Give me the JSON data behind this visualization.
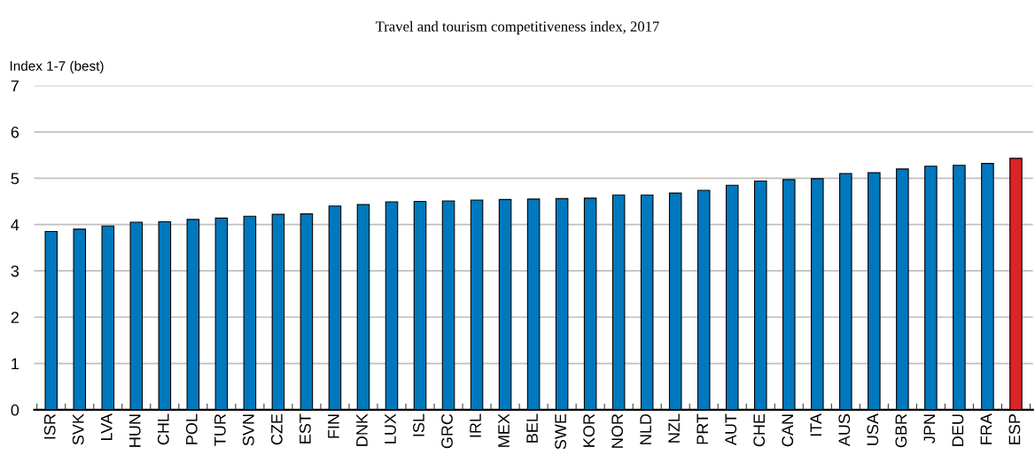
{
  "chart_data": {
    "type": "bar",
    "title": "Travel and tourism competitiveness index, 2017",
    "ylabel": "Index 1-7 (best)",
    "categories": [
      "ISR",
      "SVK",
      "LVA",
      "HUN",
      "CHL",
      "POL",
      "TUR",
      "SVN",
      "CZE",
      "EST",
      "FIN",
      "DNK",
      "LUX",
      "ISL",
      "GRC",
      "IRL",
      "MEX",
      "BEL",
      "SWE",
      "KOR",
      "NOR",
      "NLD",
      "NZL",
      "PRT",
      "AUT",
      "CHE",
      "CAN",
      "ITA",
      "AUS",
      "USA",
      "GBR",
      "JPN",
      "DEU",
      "FRA",
      "ESP"
    ],
    "values": [
      3.85,
      3.9,
      3.97,
      4.05,
      4.06,
      4.11,
      4.14,
      4.18,
      4.22,
      4.23,
      4.4,
      4.43,
      4.49,
      4.5,
      4.51,
      4.53,
      4.54,
      4.55,
      4.56,
      4.57,
      4.64,
      4.64,
      4.68,
      4.74,
      4.85,
      4.94,
      4.97,
      4.99,
      5.1,
      5.12,
      5.2,
      5.26,
      5.28,
      5.32,
      5.43
    ],
    "colors": [
      "#0078be",
      "#0078be",
      "#0078be",
      "#0078be",
      "#0078be",
      "#0078be",
      "#0078be",
      "#0078be",
      "#0078be",
      "#0078be",
      "#0078be",
      "#0078be",
      "#0078be",
      "#0078be",
      "#0078be",
      "#0078be",
      "#0078be",
      "#0078be",
      "#0078be",
      "#0078be",
      "#0078be",
      "#0078be",
      "#0078be",
      "#0078be",
      "#0078be",
      "#0078be",
      "#0078be",
      "#0078be",
      "#0078be",
      "#0078be",
      "#0078be",
      "#0078be",
      "#0078be",
      "#0078be",
      "#dc2328"
    ],
    "ylim": [
      0,
      7
    ],
    "yticks": [
      0,
      1,
      2,
      3,
      4,
      5,
      6,
      7
    ],
    "grid": "y"
  }
}
